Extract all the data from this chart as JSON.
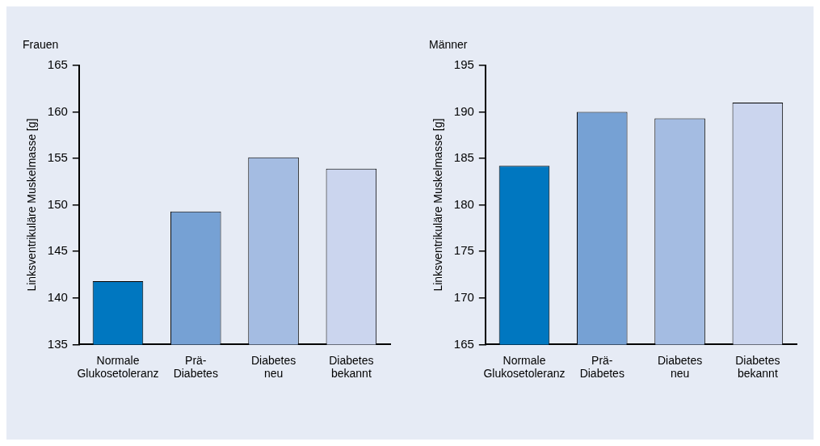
{
  "chart_data": [
    {
      "type": "bar",
      "title": "Frauen",
      "ylabel": "Linksventrikuläre Muskelmasse [g]",
      "categories": [
        "Normale\nGlukosetoleranz",
        "Prä-\nDiabetes",
        "Diabetes\nneu",
        "Diabetes\nbekannt"
      ],
      "values": [
        141.8,
        149.3,
        155.1,
        153.9
      ],
      "colors": [
        "#0077c0",
        "#76a1d4",
        "#a4bce2",
        "#cbd5ee"
      ],
      "ylim": [
        135,
        165
      ],
      "yticks": [
        135,
        140,
        145,
        150,
        155,
        160,
        165
      ],
      "grid": false,
      "legend": false
    },
    {
      "type": "bar",
      "title": "Männer",
      "ylabel": "Linksventrikuläre Muskelmasse [g]",
      "categories": [
        "Normale\nGlukosetoleranz",
        "Prä-\nDiabetes",
        "Diabetes\nneu",
        "Diabetes\nbekannt"
      ],
      "values": [
        184.2,
        190.0,
        189.3,
        191.0
      ],
      "colors": [
        "#0077c0",
        "#76a1d4",
        "#a4bce2",
        "#cbd5ee"
      ],
      "ylim": [
        165,
        195
      ],
      "yticks": [
        165,
        170,
        175,
        180,
        185,
        190,
        195
      ],
      "grid": false,
      "legend": false
    }
  ]
}
